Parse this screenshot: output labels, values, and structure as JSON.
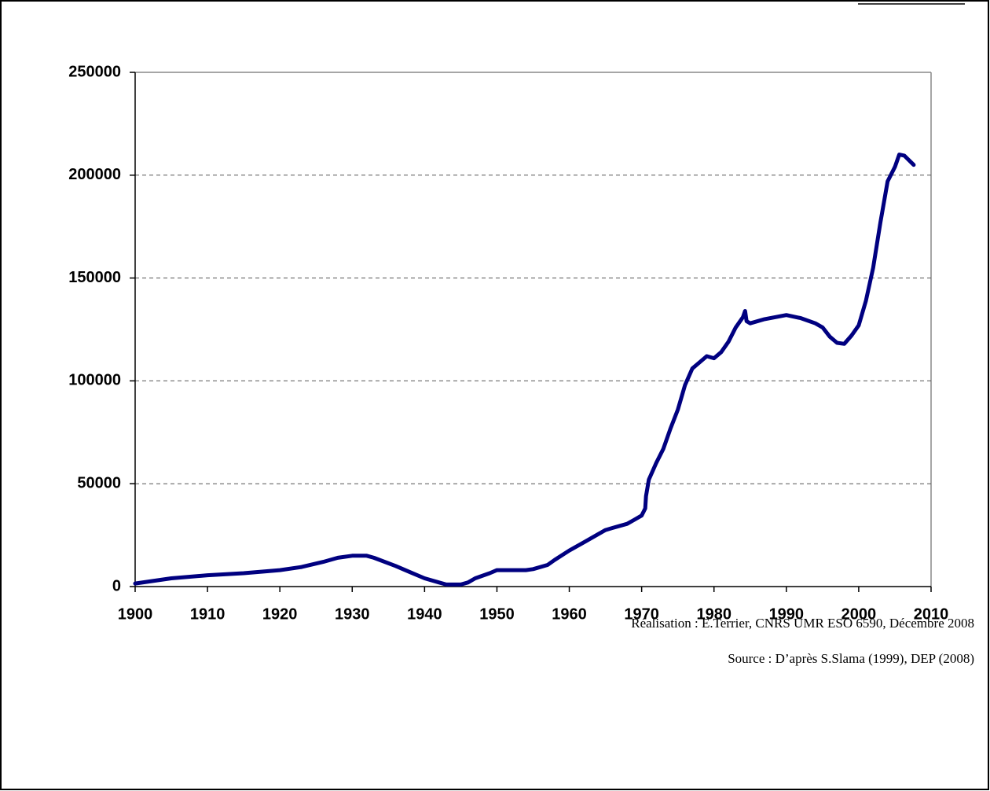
{
  "chart_data": {
    "type": "line",
    "x": [
      1900,
      1905,
      1910,
      1915,
      1920,
      1923,
      1926,
      1928,
      1930,
      1932,
      1933,
      1936,
      1938,
      1940,
      1942,
      1943,
      1945,
      1946,
      1947,
      1949,
      1950,
      1954,
      1955,
      1957,
      1958,
      1960,
      1962,
      1964,
      1965,
      1966,
      1968,
      1969,
      1970,
      1970.5,
      1970.6,
      1971,
      1972,
      1973,
      1974,
      1975,
      1976,
      1977,
      1978,
      1979,
      1980,
      1981,
      1982,
      1983,
      1984,
      1984.3,
      1984.5,
      1985,
      1987,
      1990,
      1992,
      1994,
      1995,
      1996,
      1997,
      1998,
      1999,
      2000,
      2001,
      2002,
      2003,
      2004,
      2005,
      2005.6,
      2006.3,
      2007.6
    ],
    "values": [
      1500,
      4000,
      5500,
      6500,
      8000,
      9500,
      12000,
      14000,
      15000,
      15000,
      14000,
      10000,
      7000,
      4000,
      2000,
      1000,
      1000,
      2000,
      4000,
      6500,
      8000,
      8000,
      8500,
      10500,
      13000,
      17500,
      21500,
      25500,
      27500,
      28500,
      30500,
      32500,
      34500,
      38000,
      44000,
      52000,
      60000,
      67000,
      77000,
      86000,
      98000,
      106000,
      109000,
      112000,
      111000,
      114000,
      119000,
      126000,
      131000,
      134000,
      129000,
      128000,
      130000,
      132000,
      130500,
      128000,
      126000,
      121500,
      118500,
      118000,
      122000,
      127000,
      139000,
      155000,
      177000,
      197000,
      204000,
      210000,
      209500,
      205000
    ],
    "color": "#000080",
    "xlim": [
      1900,
      2010
    ],
    "xticks": [
      1900,
      1910,
      1920,
      1930,
      1940,
      1950,
      1960,
      1970,
      1980,
      1990,
      2000,
      2010
    ],
    "ylim": [
      0,
      250000
    ],
    "yticks": [
      0,
      50000,
      100000,
      150000,
      200000,
      250000
    ],
    "grid": true,
    "annotations": [
      "Réalisation : E.Terrier, CNRS UMR ESO 6590, Décembre 2008",
      "Source : D’après S.Slama (1999), DEP (2008)"
    ]
  }
}
